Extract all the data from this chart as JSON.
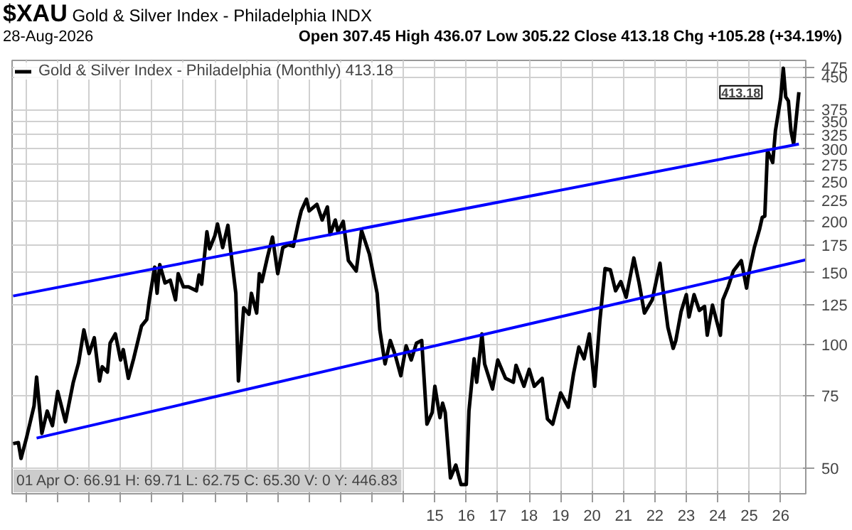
{
  "chart_data": {
    "type": "line",
    "title": "$XAU",
    "subtitle": "Gold & Silver Index - Philadelphia INDX",
    "annotations": [
      "28-Aug-2026",
      "Open 307.45 High 436.07 Low 305.22 Close 413.18 Chg +105.28 (+34.19%)",
      "01 Apr O: 66.91 H: 69.71 L: 62.75 C: 65.30 V: 0 Y: 446.83",
      {
        "text": "413.18",
        "x": "2026-08",
        "y": 413.18
      }
    ],
    "series": [
      {
        "name": "Gold & Silver Index - Philadelphia (Monthly) 413.18",
        "color": "#000000",
        "x": [
          "2001-08",
          "2001-10",
          "2001-11",
          "2002-01",
          "2002-04",
          "2002-05",
          "2002-07",
          "2002-09",
          "2002-11",
          "2003-01",
          "2003-04",
          "2003-07",
          "2003-09",
          "2003-11",
          "2004-01",
          "2004-03",
          "2004-05",
          "2004-06",
          "2004-08",
          "2004-09",
          "2004-11",
          "2005-01",
          "2005-02",
          "2005-04",
          "2005-06",
          "2005-09",
          "2005-11",
          "2005-12",
          "2006-02",
          "2006-03",
          "2006-04",
          "2006-06",
          "2006-08",
          "2006-10",
          "2006-11",
          "2007-01",
          "2007-03",
          "2007-06",
          "2007-07",
          "2007-08",
          "2007-10",
          "2007-11",
          "2008-01",
          "2008-02",
          "2008-04",
          "2008-06",
          "2008-07",
          "2008-09",
          "2008-10",
          "2008-12",
          "2009-02",
          "2009-03",
          "2009-05",
          "2009-06",
          "2009-07",
          "2009-09",
          "2009-11",
          "2010-01",
          "2010-03",
          "2010-05",
          "2010-07",
          "2010-09",
          "2010-10",
          "2010-12",
          "2011-01",
          "2011-04",
          "2011-06",
          "2011-08",
          "2011-09",
          "2011-11",
          "2011-12",
          "2012-02",
          "2012-04",
          "2012-07",
          "2012-09",
          "2012-12",
          "2013-03",
          "2013-04",
          "2013-06",
          "2013-08",
          "2013-10",
          "2013-12",
          "2014-02",
          "2014-04",
          "2014-06",
          "2014-08",
          "2014-10",
          "2014-12",
          "2015-01",
          "2015-03",
          "2015-04",
          "2015-05",
          "2015-07",
          "2015-09",
          "2015-11",
          "2016-01",
          "2016-02",
          "2016-04",
          "2016-05",
          "2016-07",
          "2016-08",
          "2016-11",
          "2017-01",
          "2017-04",
          "2017-07",
          "2017-08",
          "2017-11",
          "2018-01",
          "2018-03",
          "2018-06",
          "2018-08",
          "2018-10",
          "2019-01",
          "2019-04",
          "2019-06",
          "2019-08",
          "2019-10",
          "2019-12",
          "2020-02",
          "2020-04",
          "2020-06",
          "2020-08",
          "2020-10",
          "2020-12",
          "2021-02",
          "2021-05",
          "2021-07",
          "2021-09",
          "2021-12",
          "2022-03",
          "2022-04",
          "2022-06",
          "2022-08",
          "2022-09",
          "2022-11",
          "2023-01",
          "2023-02",
          "2023-04",
          "2023-06",
          "2023-08",
          "2023-09",
          "2023-11",
          "2024-02",
          "2024-03",
          "2024-05",
          "2024-07",
          "2024-10",
          "2024-12",
          "2025-01",
          "2025-03",
          "2025-05",
          "2025-06",
          "2025-07",
          "2025-08",
          "2025-10",
          "2025-11",
          "2026-01",
          "2026-02",
          "2026-03",
          "2026-04",
          "2026-05",
          "2026-06",
          "2026-08"
        ],
        "values": [
          57.4,
          57.7,
          52.8,
          59.0,
          70.9,
          83.4,
          60.8,
          68.9,
          63.5,
          76.9,
          64.9,
          81.0,
          90.4,
          108.7,
          95.2,
          104.0,
          81.6,
          88.4,
          85.8,
          100.9,
          106.3,
          91.8,
          97.3,
          82.8,
          92.4,
          111.1,
          115.3,
          128.7,
          154.7,
          133.5,
          156.9,
          141.5,
          143.7,
          128.7,
          149.1,
          138.4,
          138.4,
          135.4,
          148.0,
          140.5,
          188.6,
          171.4,
          184.4,
          197.1,
          172.6,
          195.6,
          171.4,
          133.5,
          81.6,
          123.1,
          118.7,
          133.5,
          119.5,
          149.1,
          142.6,
          162.8,
          183.1,
          149.1,
          172.6,
          175.3,
          173.9,
          200,
          212.1,
          226.6,
          212.1,
          220.1,
          201.5,
          216.9,
          185.8,
          201.5,
          188.6,
          200,
          160.4,
          151.3,
          190.0,
          166.4,
          133.5,
          108.7,
          89.8,
          102.4,
          93.8,
          84.0,
          99.4,
          91.8,
          100.9,
          102.4,
          64.0,
          68.4,
          79.2,
          66.4,
          72.0,
          68.4,
          47.3,
          50.9,
          45.6,
          45.6,
          68.9,
          92.4,
          81.0,
          106.3,
          89.8,
          78.0,
          91.8,
          82.8,
          81.0,
          89.1,
          79.2,
          87.1,
          79.2,
          82.8,
          65.9,
          64.0,
          76.3,
          70.4,
          85.2,
          98.7,
          92.4,
          106.3,
          79.2,
          114.4,
          153.4,
          152.4,
          135.4,
          142.6,
          130.6,
          162.8,
          141.5,
          119.5,
          128.7,
          158.1,
          138.4,
          110.2,
          98.0,
          102.4,
          120.4,
          132.5,
          116.9,
          132.5,
          121.3,
          124.0,
          105.5,
          124.9,
          105.5,
          128.7,
          138.4,
          151.3,
          160.4,
          137.5,
          151.3,
          172.6,
          191.4,
          204.5,
          206.0,
          297.5,
          278.4,
          332.2,
          399.2,
          472.8,
          402.2,
          393.4,
          332.2,
          308.7,
          413.18
        ]
      },
      {
        "type": "line",
        "color": "#0000ff",
        "x": [
          "2001-08",
          "2026-08"
        ],
        "values": [
          131.5,
          308.7
        ]
      },
      {
        "type": "line",
        "color": "#0000ff",
        "x": [
          "2002-05",
          "2026-10-20"
        ],
        "values": [
          59.2,
          161.1
        ]
      }
    ],
    "xlim": [
      "2001-07-20",
      "2026-10-20"
    ],
    "xticks": [
      {
        "value": "2002",
        "label": null
      },
      {
        "value": "2003",
        "label": null
      },
      {
        "value": "2004",
        "label": null
      },
      {
        "value": "2005",
        "label": null
      },
      {
        "value": "2006",
        "label": null
      },
      {
        "value": "2007",
        "label": null
      },
      {
        "value": "2008",
        "label": null
      },
      {
        "value": "2009",
        "label": null
      },
      {
        "value": "2010",
        "label": null
      },
      {
        "value": "2011",
        "label": null
      },
      {
        "value": "2012",
        "label": null
      },
      {
        "value": "2013",
        "label": null
      },
      {
        "value": "2014",
        "label": null
      },
      {
        "value": "2015",
        "label": "15"
      },
      {
        "value": "2016",
        "label": "16"
      },
      {
        "value": "2017",
        "label": "17"
      },
      {
        "value": "2018",
        "label": "18"
      },
      {
        "value": "2019",
        "label": "19"
      },
      {
        "value": "2020",
        "label": "20"
      },
      {
        "value": "2021",
        "label": "21"
      },
      {
        "value": "2022",
        "label": "22"
      },
      {
        "value": "2023",
        "label": "23"
      },
      {
        "value": "2024",
        "label": "24"
      },
      {
        "value": "2025",
        "label": "25"
      },
      {
        "value": "2026",
        "label": "26"
      }
    ],
    "ylim": [
      43.3,
      494
    ],
    "yticks": [
      50,
      75,
      100,
      125,
      150,
      175,
      200,
      225,
      250,
      275,
      300,
      325,
      350,
      375,
      450,
      475
    ],
    "log": true,
    "grid": true,
    "legend": "top left"
  }
}
